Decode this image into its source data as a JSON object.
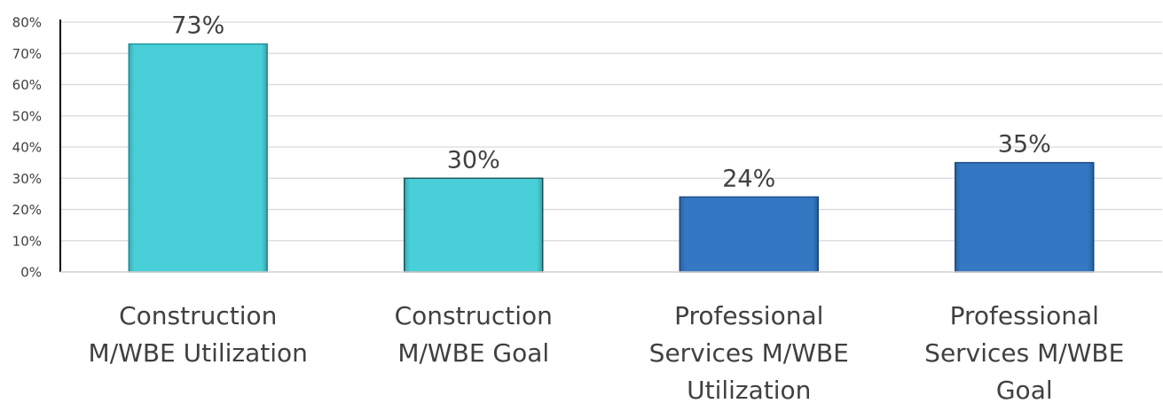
{
  "chart_data": {
    "type": "bar",
    "categories": [
      [
        "Construction",
        "M/WBE Utilization"
      ],
      [
        "Construction",
        "M/WBE Goal"
      ],
      [
        "Professional",
        "Services M/WBE",
        "Utilization"
      ],
      [
        "Professional",
        "Services M/WBE",
        "Goal"
      ]
    ],
    "values": [
      73,
      30,
      24,
      35
    ],
    "data_labels": [
      "73%",
      "30%",
      "24%",
      "35%"
    ],
    "bar_colors": [
      "#48cfd8",
      "#48cfd8",
      "#3478c4",
      "#3478c4"
    ],
    "bar_edge_colors": [
      "#2a9aa3",
      "#1f5a5e",
      "#1f4f88",
      "#1f4f88"
    ],
    "ylim": [
      0,
      80
    ],
    "yticks": [
      0,
      10,
      20,
      30,
      40,
      50,
      60,
      70,
      80
    ],
    "ytick_labels": [
      "0%",
      "10%",
      "20%",
      "30%",
      "40%",
      "50%",
      "60%",
      "70%",
      "80%"
    ],
    "grid": true,
    "title": "",
    "xlabel": "",
    "ylabel": ""
  }
}
